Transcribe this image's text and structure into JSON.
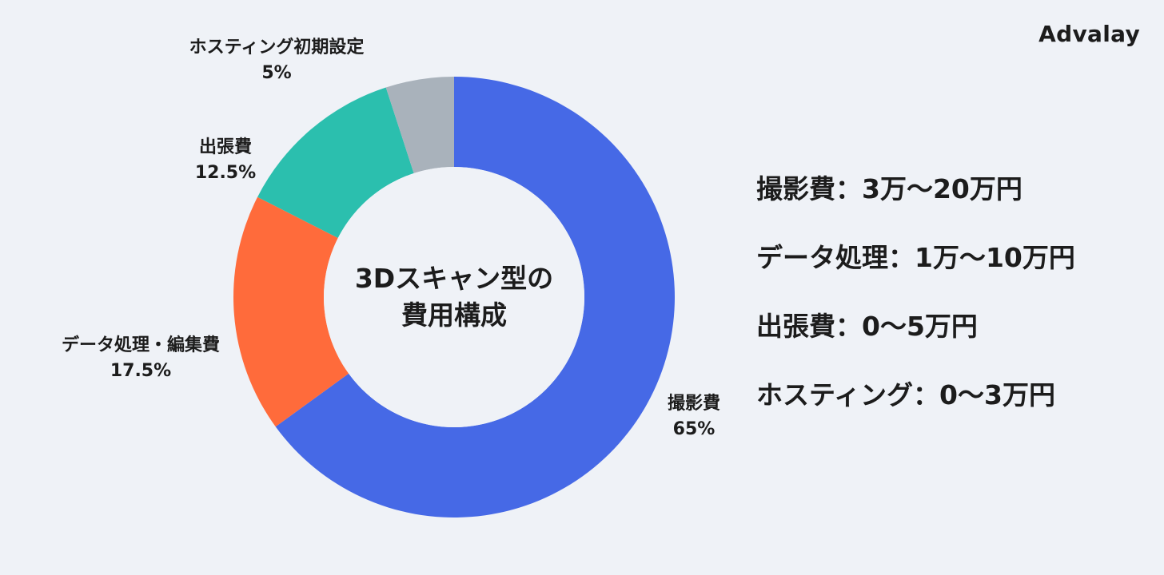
{
  "brand": "Advalay",
  "colors": {
    "background": "#eff2f7",
    "shooting": "#4669e6",
    "data": "#ff6b3b",
    "travel": "#2bbfae",
    "hosting": "#a9b2bb"
  },
  "chart_data": {
    "type": "pie",
    "donut": true,
    "title": "3Dスキャン型の費用構成",
    "title_lines": [
      "3Dスキャン型の",
      "費用構成"
    ],
    "slices": [
      {
        "label": "撮影費",
        "value": 65,
        "value_label": "65%",
        "color": "#4669e6"
      },
      {
        "label": "データ処理・編集費",
        "value": 17.5,
        "value_label": "17.5%",
        "color": "#ff6b3b"
      },
      {
        "label": "出張費",
        "value": 12.5,
        "value_label": "12.5%",
        "color": "#2bbfae"
      },
      {
        "label": "ホスティング初期設定",
        "value": 5,
        "value_label": "5%",
        "color": "#a9b2bb"
      }
    ]
  },
  "cost_ranges": [
    "撮影費：3万〜20万円",
    "データ処理：1万〜10万円",
    "出張費：0〜5万円",
    "ホスティング：0〜3万円"
  ]
}
